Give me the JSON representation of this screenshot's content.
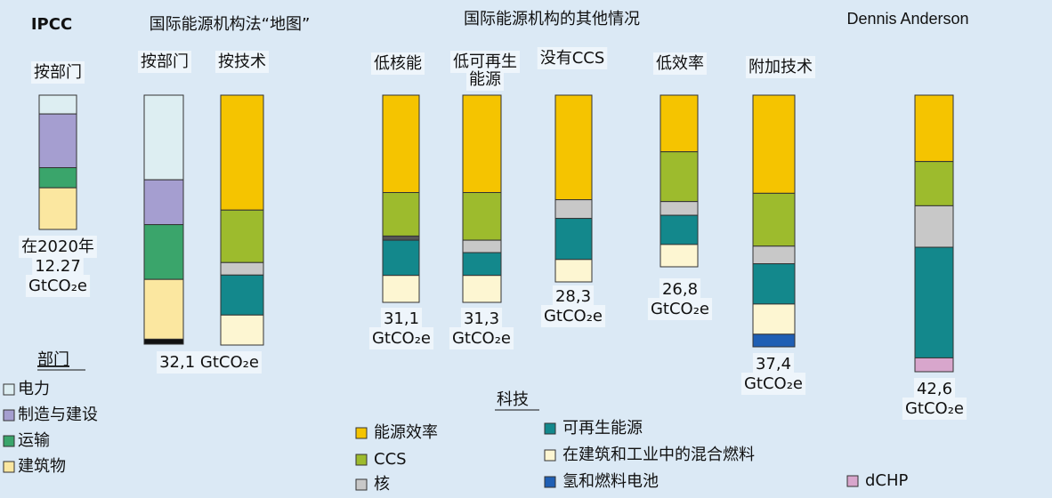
{
  "chart_data": {
    "type": "bar",
    "stacked": true,
    "headers": [
      "IPCC",
      "国际能源机构法“地图”",
      "国际能源机构的其他情况",
      "Dennis Anderson"
    ],
    "columns": [
      {
        "label": [
          "按部门"
        ],
        "values": [
          14,
          40,
          15,
          31
        ],
        "colors": [
          "#ddeef2",
          "#a59ed0",
          "#3aa56b",
          "#fbe7a0"
        ],
        "total_label": [
          "在2020年",
          "12.27",
          "GtCO₂e"
        ]
      },
      {
        "label": [
          "按部门"
        ],
        "values": [
          34,
          18,
          22,
          24,
          2
        ],
        "colors": [
          "#ddeef2",
          "#a59ed0",
          "#3aa56b",
          "#fbe7a0",
          "#111111"
        ],
        "total_label": []
      },
      {
        "label": [
          "按技术"
        ],
        "values": [
          46,
          21,
          5,
          16,
          12
        ],
        "colors": [
          "#f5c400",
          "#9dbb2d",
          "#c8c8c8",
          "#13888c",
          "#fdf6d2"
        ],
        "total_label": [
          "32,1 GtCO₂e"
        ]
      },
      {
        "label": [
          "低核能"
        ],
        "values": [
          47,
          21,
          2,
          17,
          13
        ],
        "colors": [
          "#f5c400",
          "#9dbb2d",
          "#555555",
          "#13888c",
          "#fdf6d2"
        ],
        "total_label": [
          "31,1",
          "GtCO₂e"
        ]
      },
      {
        "label": [
          "低可再生",
          "能源"
        ],
        "values": [
          47,
          23,
          6,
          11,
          13
        ],
        "colors": [
          "#f5c400",
          "#9dbb2d",
          "#c8c8c8",
          "#13888c",
          "#fdf6d2"
        ],
        "total_label": [
          "31,3",
          "GtCO₂e"
        ]
      },
      {
        "label": [
          "没有CCS"
        ],
        "values": [
          56,
          10,
          22,
          12
        ],
        "colors": [
          "#f5c400",
          "#c8c8c8",
          "#13888c",
          "#fdf6d2"
        ],
        "total_label": [
          "28,3",
          "GtCO₂e"
        ]
      },
      {
        "label": [
          "低效率"
        ],
        "values": [
          33,
          29,
          8,
          17,
          13
        ],
        "colors": [
          "#f5c400",
          "#9dbb2d",
          "#c8c8c8",
          "#13888c",
          "#fdf6d2"
        ],
        "total_label": [
          "26,8",
          "GtCO₂e"
        ]
      },
      {
        "label": [
          "附加技术"
        ],
        "values": [
          39,
          21,
          7,
          16,
          12,
          5
        ],
        "colors": [
          "#f5c400",
          "#9dbb2d",
          "#c8c8c8",
          "#13888c",
          "#fdf6d2",
          "#1f5fb4"
        ],
        "total_label": [
          "37,4",
          "GtCO₂e"
        ]
      },
      {
        "label": [],
        "values": [
          24,
          16,
          15,
          40,
          5
        ],
        "colors": [
          "#f5c400",
          "#9dbb2d",
          "#c8c8c8",
          "#13888c",
          "#d8a6cc"
        ],
        "total_label": [
          "42,6",
          "GtCO₂e"
        ]
      }
    ],
    "sector_legend": {
      "title": "部门",
      "series": [
        {
          "name": "电力",
          "color": "#ddeef2"
        },
        {
          "name": "制造与建设",
          "color": "#a59ed0"
        },
        {
          "name": "运输",
          "color": "#3aa56b"
        },
        {
          "name": "建筑物",
          "color": "#fbe7a0"
        }
      ]
    },
    "tech_legend": {
      "title": "科技",
      "series": [
        {
          "name": "能源效率",
          "color": "#f5c400"
        },
        {
          "name": "CCS",
          "color": "#9dbb2d"
        },
        {
          "name": "核",
          "color": "#c8c8c8"
        },
        {
          "name": "可再生能源",
          "color": "#13888c"
        },
        {
          "name": "在建筑和工业中的混合燃料",
          "color": "#fdf6d2"
        },
        {
          "name": "氢和燃料电池",
          "color": "#1f5fb4"
        },
        {
          "name": "dCHP",
          "color": "#d8a6cc"
        }
      ]
    }
  }
}
